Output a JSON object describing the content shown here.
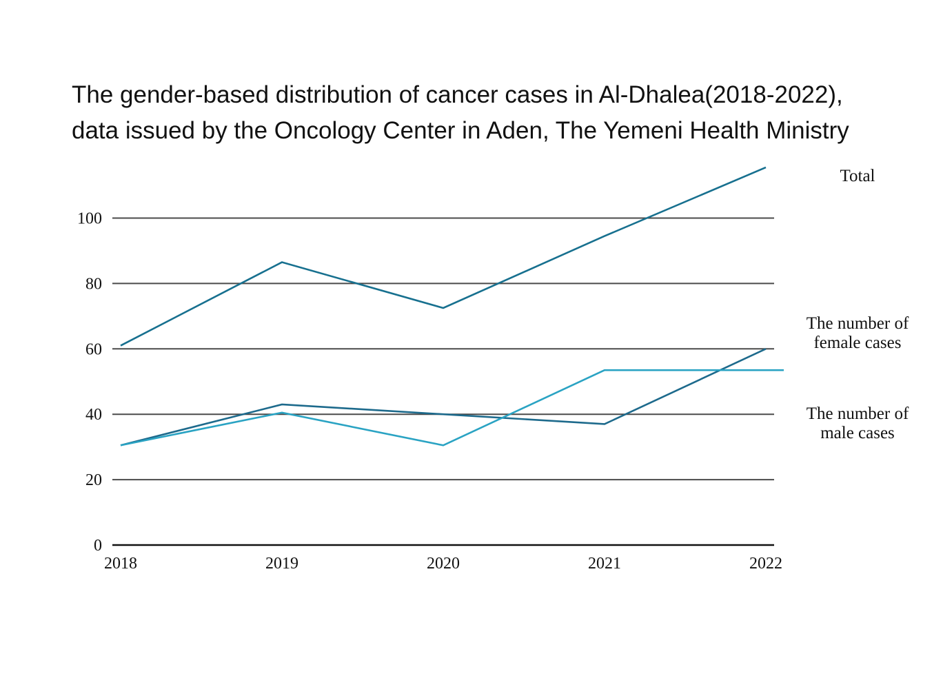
{
  "chart_data": {
    "type": "line",
    "title": "The gender-based  distribution of cancer cases in Al-Dhalea(2018-2022), data issued  by  the Oncology Center in Aden, The Yemeni Health Ministry",
    "title_lines": [
      "The gender-based  distribution of cancer cases in Al-Dhalea(2018-2022),",
      "data issued  by  the Oncology Center in Aden, The Yemeni Health Ministry"
    ],
    "xlabel": "",
    "ylabel": "",
    "x": [
      "2018",
      "2019",
      "2020",
      "2021",
      "2022"
    ],
    "y_ticks": [
      0,
      20,
      40,
      60,
      80,
      100
    ],
    "ylim": [
      0,
      115
    ],
    "grid": true,
    "legend": "right (labels beside lines)",
    "series": [
      {
        "name": "Total",
        "label_lines": [
          "Total"
        ],
        "color": "#17708f",
        "values": [
          61,
          86.5,
          72.5,
          94.5,
          115.5
        ]
      },
      {
        "name": "The number of female cases",
        "label_lines": [
          "The number of",
          "female cases"
        ],
        "color": "#1d6a8c",
        "values": [
          30.5,
          43,
          40,
          37,
          60
        ]
      },
      {
        "name": "The number of male cases",
        "label_lines": [
          "The number of",
          "male cases"
        ],
        "color": "#2aa3c3",
        "values": [
          30.5,
          40.5,
          30.5,
          53.5,
          53.5
        ]
      }
    ]
  }
}
